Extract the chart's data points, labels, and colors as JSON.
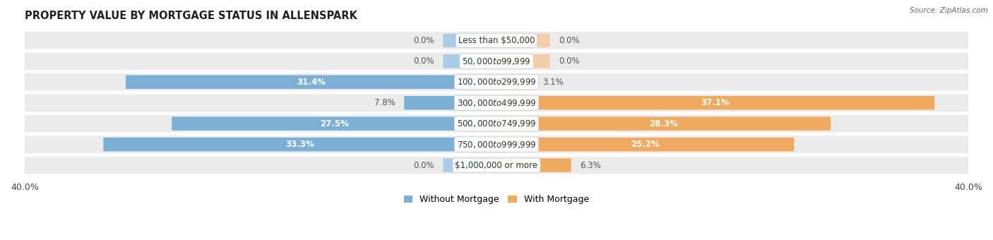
{
  "title": "PROPERTY VALUE BY MORTGAGE STATUS IN ALLENSPARK",
  "source": "Source: ZipAtlas.com",
  "categories": [
    "Less than $50,000",
    "$50,000 to $99,999",
    "$100,000 to $299,999",
    "$300,000 to $499,999",
    "$500,000 to $749,999",
    "$750,000 to $999,999",
    "$1,000,000 or more"
  ],
  "without_mortgage": [
    0.0,
    0.0,
    31.4,
    7.8,
    27.5,
    33.3,
    0.0
  ],
  "with_mortgage": [
    0.0,
    0.0,
    3.1,
    37.1,
    28.3,
    25.2,
    6.3
  ],
  "color_without": "#7bafd4",
  "color_with": "#f0aa5f",
  "color_without_light": "#aacce8",
  "color_with_light": "#f5ccaa",
  "xlim": 40.0,
  "bg_row": "#ebebeb",
  "bg_fig": "#ffffff",
  "label_fontsize": 8.5,
  "title_fontsize": 10.5,
  "axis_label_fontsize": 9,
  "legend_fontsize": 9,
  "bar_height": 0.6,
  "zero_stub": 4.5
}
